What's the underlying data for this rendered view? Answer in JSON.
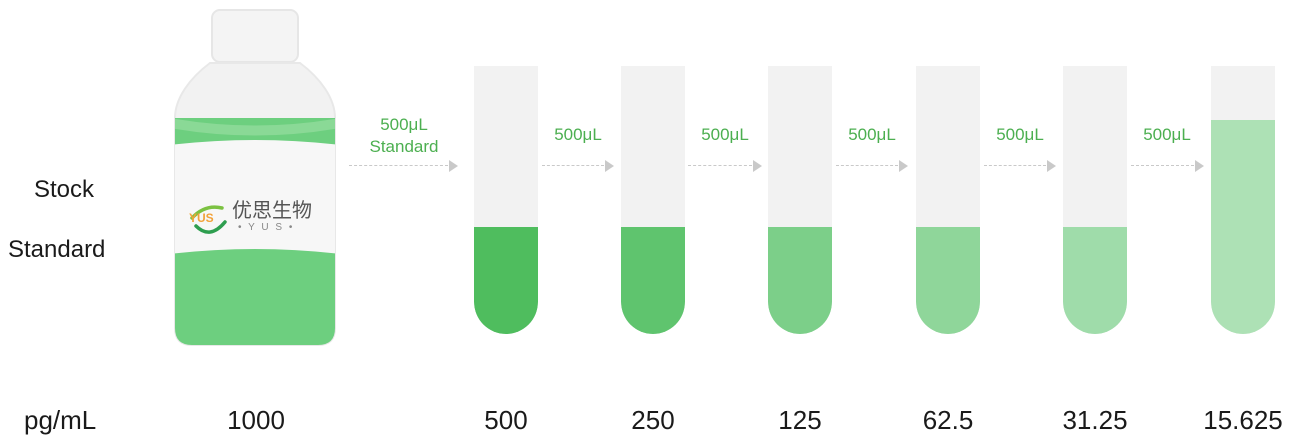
{
  "labels": {
    "stock_line1": "Stock",
    "stock_line2": "Standard",
    "unit": "pg/mL"
  },
  "bottle": {
    "brand_cn": "优思生物",
    "brand_en": "• Y U S •",
    "logo_text": "YUS",
    "concentration": "1000",
    "fill_color": "#6dcf7f"
  },
  "transfers": [
    {
      "line1": "500μL",
      "line2": "Standard"
    },
    {
      "line1": "500μL",
      "line2": ""
    },
    {
      "line1": "500μL",
      "line2": ""
    },
    {
      "line1": "500μL",
      "line2": ""
    },
    {
      "line1": "500μL",
      "line2": ""
    },
    {
      "line1": "500μL",
      "line2": ""
    }
  ],
  "tubes": [
    {
      "concentration": "500",
      "color": "#4fbd5e",
      "fill_fraction": 0.4
    },
    {
      "concentration": "250",
      "color": "#5fc46e",
      "fill_fraction": 0.4
    },
    {
      "concentration": "125",
      "color": "#7ccf89",
      "fill_fraction": 0.4
    },
    {
      "concentration": "62.5",
      "color": "#8fd69a",
      "fill_fraction": 0.4
    },
    {
      "concentration": "31.25",
      "color": "#9fdcaa",
      "fill_fraction": 0.4
    },
    {
      "concentration": "15.625",
      "color": "#ade1b5",
      "fill_fraction": 0.8
    }
  ]
}
